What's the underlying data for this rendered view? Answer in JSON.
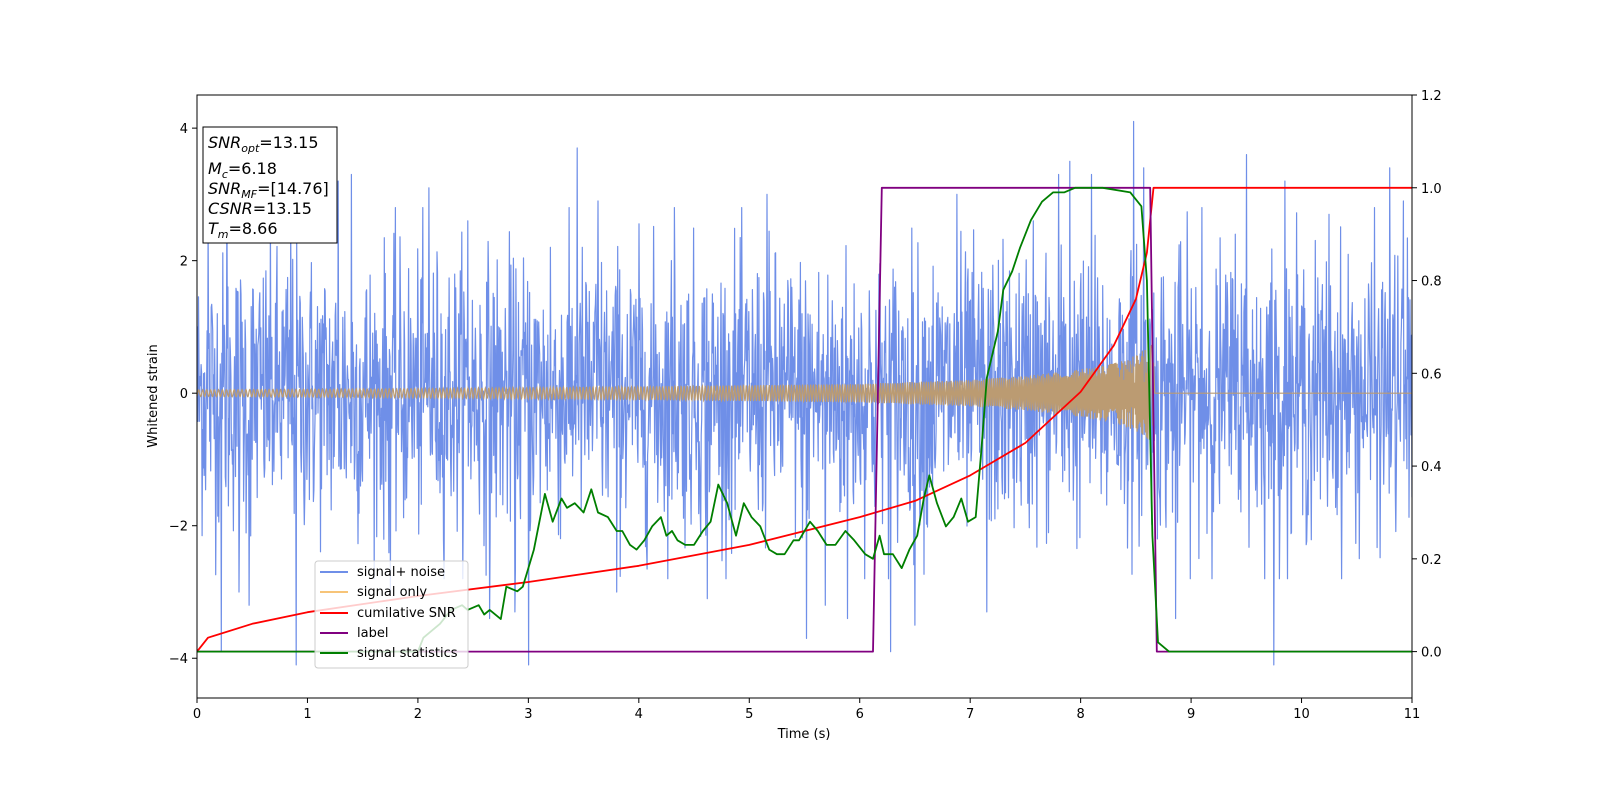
{
  "chart_data": {
    "type": "line",
    "title": "",
    "xlabel": "Time (s)",
    "ylabel": "Whitened strain",
    "xlim": [
      0,
      11
    ],
    "ylim": [
      -4.6,
      4.5
    ],
    "y2lim": [
      -0.1,
      1.2
    ],
    "x_ticks": [
      0,
      1,
      2,
      3,
      4,
      5,
      6,
      7,
      8,
      9,
      10,
      11
    ],
    "y_ticks": [
      -4,
      -2,
      0,
      2,
      4
    ],
    "y2_ticks": [
      "0.0",
      "0.2",
      "0.4",
      "0.6",
      "0.8",
      "1.0",
      "1.2"
    ],
    "grid": false,
    "legend_placement": "lower-left",
    "colors": {
      "signal_noise": "#6f8fe8",
      "signal_only": "#f7c478",
      "signal_only_overlay": "#bb9b72",
      "cumulative_snr": "#ff0000",
      "label": "#800080",
      "signal_statistics": "#007f00"
    },
    "info_box": {
      "snr_opt": {
        "main": "SNR",
        "sub": "opt",
        "value": "=13.15"
      },
      "mc": {
        "main": "M",
        "sub": "c",
        "value": "=6.18"
      },
      "snr_mf": {
        "main": "SNR",
        "sub": "MF",
        "value": "=[14.76]"
      },
      "csnr": {
        "main": "CSNR",
        "value": "=13.15"
      },
      "tm": {
        "main": "T",
        "sub": "m",
        "value": "=8.66"
      }
    },
    "series": [
      {
        "name": "signal+ noise",
        "axis": "left",
        "style": "noisy band",
        "typical_amplitude": 1.45,
        "peaks": [
          [
            0.1,
            2.6
          ],
          [
            0.22,
            -3.9
          ],
          [
            0.27,
            3.0
          ],
          [
            0.38,
            -3.0
          ],
          [
            0.47,
            -3.2
          ],
          [
            0.85,
            2.5
          ],
          [
            0.9,
            -4.1
          ],
          [
            1.28,
            3.2
          ],
          [
            1.4,
            3.3
          ],
          [
            1.75,
            -3.0
          ],
          [
            2.1,
            3.1
          ],
          [
            2.45,
            2.6
          ],
          [
            2.65,
            -3.4
          ],
          [
            2.88,
            -3.3
          ],
          [
            3.0,
            -4.1
          ],
          [
            3.2,
            2.2
          ],
          [
            3.44,
            3.7
          ],
          [
            3.63,
            2.9
          ],
          [
            3.8,
            -3.0
          ],
          [
            4.32,
            2.8
          ],
          [
            4.62,
            -3.1
          ],
          [
            5.16,
            3.0
          ],
          [
            5.52,
            -3.7
          ],
          [
            5.69,
            -3.2
          ],
          [
            5.89,
            -3.4
          ],
          [
            6.28,
            -3.9
          ],
          [
            6.5,
            -3.5
          ],
          [
            6.88,
            3.0
          ],
          [
            7.15,
            -3.3
          ],
          [
            7.57,
            2.6
          ],
          [
            7.8,
            3.3
          ],
          [
            7.9,
            3.5
          ],
          [
            8.1,
            3.3
          ],
          [
            8.48,
            4.1
          ],
          [
            8.57,
            3.4
          ],
          [
            8.86,
            -3.4
          ],
          [
            9.1,
            2.8
          ],
          [
            9.4,
            2.4
          ],
          [
            9.5,
            3.6
          ],
          [
            9.75,
            -4.1
          ],
          [
            9.85,
            3.2
          ],
          [
            10.25,
            2.7
          ],
          [
            10.8,
            3.4
          ],
          [
            10.92,
            2.9
          ]
        ]
      },
      {
        "name": "signal only",
        "axis": "left",
        "style": "chirp",
        "amplitude_envelope": [
          [
            0,
            0.05
          ],
          [
            2,
            0.07
          ],
          [
            4,
            0.1
          ],
          [
            6,
            0.14
          ],
          [
            7,
            0.2
          ],
          [
            7.5,
            0.26
          ],
          [
            8,
            0.36
          ],
          [
            8.3,
            0.45
          ],
          [
            8.5,
            0.57
          ],
          [
            8.66,
            0.75
          ],
          [
            8.67,
            0.0
          ],
          [
            11,
            0.0
          ]
        ]
      },
      {
        "name": "cumilative SNR",
        "axis": "right",
        "points": [
          [
            0,
            0.0
          ],
          [
            0.1,
            0.03
          ],
          [
            0.5,
            0.06
          ],
          [
            1,
            0.085
          ],
          [
            2,
            0.12
          ],
          [
            3,
            0.15
          ],
          [
            4,
            0.185
          ],
          [
            5,
            0.23
          ],
          [
            6,
            0.29
          ],
          [
            6.5,
            0.325
          ],
          [
            7,
            0.38
          ],
          [
            7.5,
            0.45
          ],
          [
            8,
            0.56
          ],
          [
            8.3,
            0.66
          ],
          [
            8.5,
            0.76
          ],
          [
            8.6,
            0.86
          ],
          [
            8.66,
            1.0
          ],
          [
            11,
            1.0
          ]
        ]
      },
      {
        "name": "label",
        "axis": "right",
        "points": [
          [
            0,
            0.0
          ],
          [
            6.12,
            0.0
          ],
          [
            6.2,
            1.0
          ],
          [
            8.63,
            1.0
          ],
          [
            8.69,
            0.0
          ],
          [
            11,
            0.0
          ]
        ]
      },
      {
        "name": "signal statistics",
        "axis": "right",
        "points": [
          [
            0,
            0.0
          ],
          [
            2.0,
            0.0
          ],
          [
            2.05,
            0.03
          ],
          [
            2.2,
            0.06
          ],
          [
            2.3,
            0.09
          ],
          [
            2.4,
            0.1
          ],
          [
            2.45,
            0.09
          ],
          [
            2.55,
            0.1
          ],
          [
            2.6,
            0.08
          ],
          [
            2.65,
            0.09
          ],
          [
            2.75,
            0.07
          ],
          [
            2.8,
            0.14
          ],
          [
            2.9,
            0.13
          ],
          [
            2.95,
            0.14
          ],
          [
            3.05,
            0.22
          ],
          [
            3.15,
            0.34
          ],
          [
            3.22,
            0.28
          ],
          [
            3.3,
            0.33
          ],
          [
            3.35,
            0.31
          ],
          [
            3.42,
            0.32
          ],
          [
            3.5,
            0.3
          ],
          [
            3.57,
            0.35
          ],
          [
            3.63,
            0.3
          ],
          [
            3.72,
            0.29
          ],
          [
            3.8,
            0.26
          ],
          [
            3.85,
            0.26
          ],
          [
            3.92,
            0.23
          ],
          [
            3.98,
            0.22
          ],
          [
            4.05,
            0.24
          ],
          [
            4.12,
            0.27
          ],
          [
            4.2,
            0.29
          ],
          [
            4.25,
            0.25
          ],
          [
            4.3,
            0.26
          ],
          [
            4.35,
            0.24
          ],
          [
            4.42,
            0.23
          ],
          [
            4.5,
            0.23
          ],
          [
            4.58,
            0.26
          ],
          [
            4.65,
            0.28
          ],
          [
            4.72,
            0.36
          ],
          [
            4.8,
            0.32
          ],
          [
            4.88,
            0.25
          ],
          [
            4.95,
            0.32
          ],
          [
            5.02,
            0.29
          ],
          [
            5.1,
            0.27
          ],
          [
            5.18,
            0.22
          ],
          [
            5.25,
            0.21
          ],
          [
            5.32,
            0.21
          ],
          [
            5.4,
            0.24
          ],
          [
            5.45,
            0.24
          ],
          [
            5.55,
            0.28
          ],
          [
            5.62,
            0.26
          ],
          [
            5.7,
            0.23
          ],
          [
            5.78,
            0.23
          ],
          [
            5.87,
            0.26
          ],
          [
            5.95,
            0.24
          ],
          [
            6.05,
            0.21
          ],
          [
            6.12,
            0.2
          ],
          [
            6.18,
            0.25
          ],
          [
            6.22,
            0.21
          ],
          [
            6.3,
            0.21
          ],
          [
            6.38,
            0.18
          ],
          [
            6.45,
            0.22
          ],
          [
            6.52,
            0.25
          ],
          [
            6.58,
            0.33
          ],
          [
            6.63,
            0.38
          ],
          [
            6.7,
            0.32
          ],
          [
            6.78,
            0.27
          ],
          [
            6.85,
            0.29
          ],
          [
            6.92,
            0.33
          ],
          [
            6.98,
            0.28
          ],
          [
            7.05,
            0.29
          ],
          [
            7.1,
            0.43
          ],
          [
            7.15,
            0.59
          ],
          [
            7.25,
            0.69
          ],
          [
            7.3,
            0.78
          ],
          [
            7.38,
            0.82
          ],
          [
            7.45,
            0.87
          ],
          [
            7.55,
            0.93
          ],
          [
            7.65,
            0.97
          ],
          [
            7.75,
            0.99
          ],
          [
            7.85,
            0.99
          ],
          [
            7.95,
            1.0
          ],
          [
            8.2,
            1.0
          ],
          [
            8.45,
            0.99
          ],
          [
            8.55,
            0.96
          ],
          [
            8.6,
            0.8
          ],
          [
            8.65,
            0.25
          ],
          [
            8.7,
            0.02
          ],
          [
            8.8,
            0.0
          ],
          [
            11,
            0.0
          ]
        ]
      }
    ]
  }
}
